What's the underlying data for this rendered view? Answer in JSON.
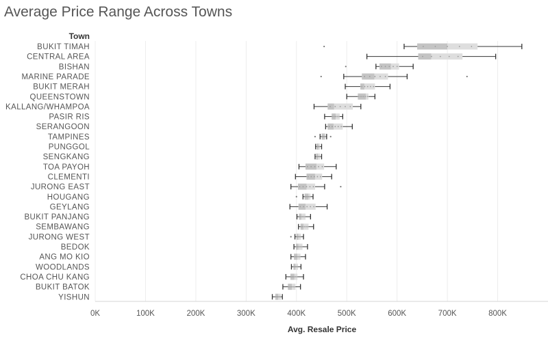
{
  "chart_data": {
    "type": "boxplot",
    "title": "Average Price Range Across Towns",
    "row_header": "Town",
    "xlabel": "Avg. Resale Price",
    "xlim": [
      0,
      900000
    ],
    "x_ticks": [
      0,
      100000,
      200000,
      300000,
      400000,
      500000,
      600000,
      700000,
      800000
    ],
    "x_tick_labels": [
      "0K",
      "100K",
      "200K",
      "300K",
      "400K",
      "500K",
      "600K",
      "700K",
      "800K"
    ],
    "grid": true,
    "colors": {
      "box_dark": "#c4c4c4",
      "box_light": "#dedede",
      "whisker": "#333333",
      "dots": "#9a9a9a"
    },
    "rows": [
      {
        "town": "BUKIT TIMAH",
        "min": 614000,
        "q1": 640000,
        "median": 700000,
        "q3": 760000,
        "max": 848000,
        "outliers": [
          455000
        ]
      },
      {
        "town": "CENTRAL AREA",
        "min": 540000,
        "q1": 642000,
        "median": 668000,
        "q3": 730000,
        "max": 796000,
        "outliers": []
      },
      {
        "town": "BISHAN",
        "min": 558000,
        "q1": 565000,
        "median": 588000,
        "q3": 604000,
        "max": 632000,
        "outliers": [
          498000
        ]
      },
      {
        "town": "MARINE PARADE",
        "min": 494000,
        "q1": 530000,
        "median": 555000,
        "q3": 582000,
        "max": 620000,
        "outliers": [
          449000,
          739000
        ]
      },
      {
        "town": "BUKIT MERAH",
        "min": 497000,
        "q1": 527000,
        "median": 535000,
        "q3": 556000,
        "max": 586000,
        "outliers": []
      },
      {
        "town": "QUEENSTOWN",
        "min": 500000,
        "q1": 522000,
        "median": 538000,
        "q3": 543000,
        "max": 556000,
        "outliers": []
      },
      {
        "town": "KALLANG/WHAMPOA",
        "min": 435000,
        "q1": 462000,
        "median": 475000,
        "q3": 512000,
        "max": 528000,
        "outliers": []
      },
      {
        "town": "PASIR RIS",
        "min": 456000,
        "q1": 470000,
        "median": 478000,
        "q3": 486000,
        "max": 492000,
        "outliers": []
      },
      {
        "town": "SERANGOON",
        "min": 458000,
        "q1": 462000,
        "median": 474000,
        "q3": 492000,
        "max": 511000,
        "outliers": []
      },
      {
        "town": "TAMPINES",
        "min": 447000,
        "q1": 450000,
        "median": 456000,
        "q3": 458000,
        "max": 460000,
        "outliers": [
          437000,
          468000
        ]
      },
      {
        "town": "PUNGGOL",
        "min": 438000,
        "q1": 440000,
        "median": 444000,
        "q3": 447000,
        "max": 450000,
        "outliers": []
      },
      {
        "town": "SENGKANG",
        "min": 437000,
        "q1": 439000,
        "median": 443000,
        "q3": 447000,
        "max": 450000,
        "outliers": []
      },
      {
        "town": "TOA PAYOH",
        "min": 405000,
        "q1": 418000,
        "median": 440000,
        "q3": 455000,
        "max": 479000,
        "outliers": []
      },
      {
        "town": "CLEMENTI",
        "min": 398000,
        "q1": 420000,
        "median": 437000,
        "q3": 451000,
        "max": 470000,
        "outliers": []
      },
      {
        "town": "JURONG EAST",
        "min": 389000,
        "q1": 403000,
        "median": 420000,
        "q3": 437000,
        "max": 456000,
        "outliers": [
          488000
        ]
      },
      {
        "town": "HOUGANG",
        "min": 413000,
        "q1": 416000,
        "median": 424000,
        "q3": 428000,
        "max": 433000,
        "outliers": [
          400000
        ]
      },
      {
        "town": "GEYLANG",
        "min": 387000,
        "q1": 404000,
        "median": 418000,
        "q3": 438000,
        "max": 461000,
        "outliers": []
      },
      {
        "town": "BUKIT PANJANG",
        "min": 401000,
        "q1": 405000,
        "median": 410000,
        "q3": 418000,
        "max": 428000,
        "outliers": []
      },
      {
        "town": "SEMBAWANG",
        "min": 404000,
        "q1": 408000,
        "median": 414000,
        "q3": 424000,
        "max": 434000,
        "outliers": []
      },
      {
        "town": "JURONG WEST",
        "min": 397000,
        "q1": 400000,
        "median": 404000,
        "q3": 409000,
        "max": 414000,
        "outliers": [
          389000
        ]
      },
      {
        "town": "BEDOK",
        "min": 395000,
        "q1": 399000,
        "median": 404000,
        "q3": 412000,
        "max": 422000,
        "outliers": []
      },
      {
        "town": "ANG MO KIO",
        "min": 389000,
        "q1": 395000,
        "median": 402000,
        "q3": 408000,
        "max": 418000,
        "outliers": []
      },
      {
        "town": "WOODLANDS",
        "min": 390000,
        "q1": 394000,
        "median": 398000,
        "q3": 403000,
        "max": 409000,
        "outliers": []
      },
      {
        "town": "CHOA CHU KANG",
        "min": 379000,
        "q1": 388000,
        "median": 396000,
        "q3": 402000,
        "max": 414000,
        "outliers": []
      },
      {
        "town": "BUKIT BATOK",
        "min": 373000,
        "q1": 383000,
        "median": 391000,
        "q3": 398000,
        "max": 408000,
        "outliers": []
      },
      {
        "town": "YISHUN",
        "min": 352000,
        "q1": 358000,
        "median": 364000,
        "q3": 369000,
        "max": 372000,
        "outliers": []
      }
    ]
  }
}
